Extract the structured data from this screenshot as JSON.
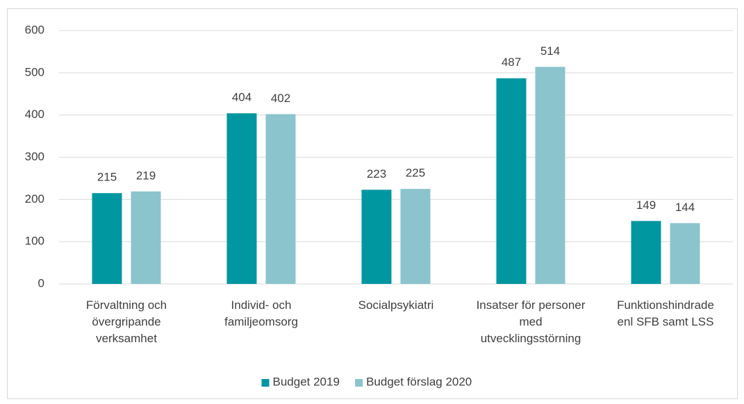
{
  "chart_data": {
    "type": "bar",
    "categories": [
      "Förvaltning och övergripande verksamhet",
      "Individ- och familjeomsorg",
      "Socialpsykiatri",
      "Insatser för personer med utvecklingsstörning",
      "Funktionshindrade enl SFB samt LSS"
    ],
    "series": [
      {
        "name": "Budget 2019",
        "color": "#0097a0",
        "values": [
          215,
          404,
          223,
          487,
          149
        ]
      },
      {
        "name": "Budget förslag 2020",
        "color": "#8bc4cc",
        "values": [
          219,
          402,
          225,
          514,
          144
        ]
      }
    ],
    "ylim": [
      0,
      600
    ],
    "yticks": [
      0,
      100,
      200,
      300,
      400,
      500,
      600
    ],
    "grid": true,
    "legend": "bottom"
  }
}
